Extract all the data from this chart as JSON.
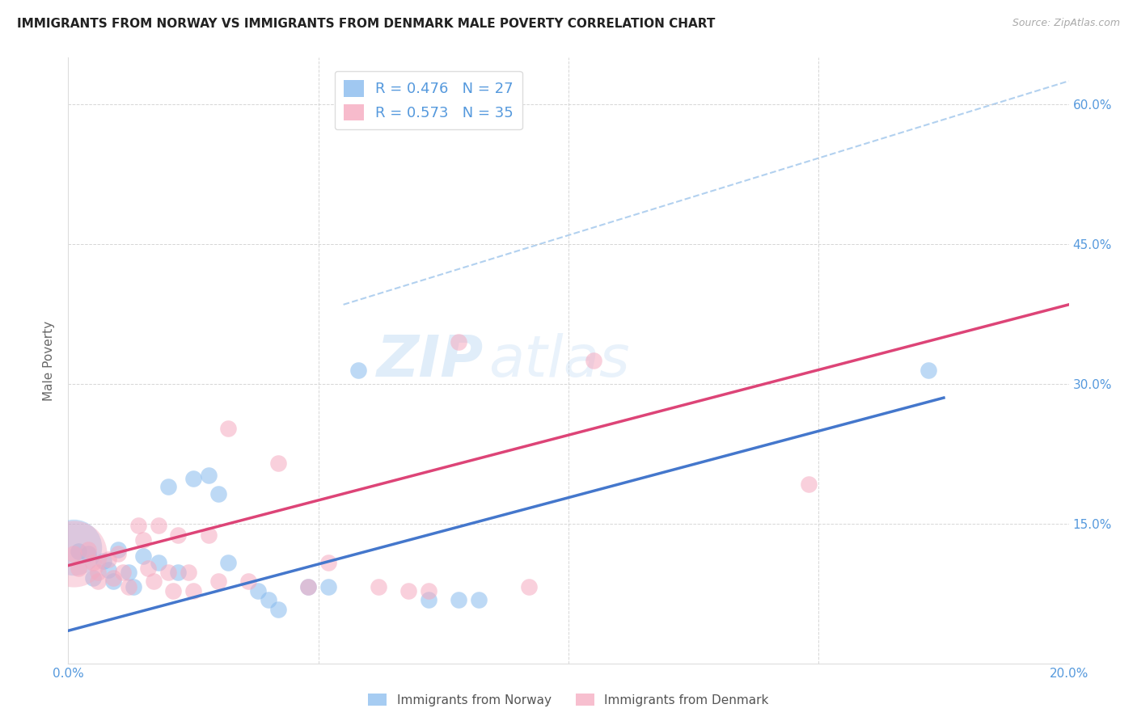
{
  "title": "IMMIGRANTS FROM NORWAY VS IMMIGRANTS FROM DENMARK MALE POVERTY CORRELATION CHART",
  "source": "Source: ZipAtlas.com",
  "tick_color": "#5599dd",
  "ylabel": "Male Poverty",
  "xlim": [
    0.0,
    0.2
  ],
  "ylim": [
    0.0,
    0.65
  ],
  "xticks": [
    0.0,
    0.05,
    0.1,
    0.15,
    0.2
  ],
  "yticks": [
    0.0,
    0.15,
    0.3,
    0.45,
    0.6
  ],
  "xtick_labels": [
    "0.0%",
    "",
    "",
    "",
    "20.0%"
  ],
  "ytick_labels_right": [
    "",
    "15.0%",
    "30.0%",
    "45.0%",
    "60.0%"
  ],
  "norway_R": 0.476,
  "norway_N": 27,
  "denmark_R": 0.573,
  "denmark_N": 35,
  "norway_color": "#88bbee",
  "denmark_color": "#f5aac0",
  "norway_line_color": "#4477cc",
  "denmark_line_color": "#dd4477",
  "ref_line_color": "#aaccee",
  "background_color": "#ffffff",
  "grid_color": "#cccccc",
  "watermark_zip": "ZIP",
  "watermark_atlas": "atlas",
  "norway_scatter": [
    [
      0.002,
      0.12
    ],
    [
      0.004,
      0.118
    ],
    [
      0.005,
      0.092
    ],
    [
      0.007,
      0.11
    ],
    [
      0.008,
      0.1
    ],
    [
      0.009,
      0.088
    ],
    [
      0.01,
      0.122
    ],
    [
      0.012,
      0.098
    ],
    [
      0.013,
      0.082
    ],
    [
      0.015,
      0.115
    ],
    [
      0.018,
      0.108
    ],
    [
      0.02,
      0.19
    ],
    [
      0.022,
      0.098
    ],
    [
      0.025,
      0.198
    ],
    [
      0.028,
      0.202
    ],
    [
      0.03,
      0.182
    ],
    [
      0.032,
      0.108
    ],
    [
      0.038,
      0.078
    ],
    [
      0.04,
      0.068
    ],
    [
      0.042,
      0.058
    ],
    [
      0.048,
      0.082
    ],
    [
      0.052,
      0.082
    ],
    [
      0.058,
      0.315
    ],
    [
      0.072,
      0.068
    ],
    [
      0.078,
      0.068
    ],
    [
      0.082,
      0.068
    ],
    [
      0.172,
      0.315
    ]
  ],
  "norway_big_point": [
    0.001,
    0.125
  ],
  "norway_big_size": 2500,
  "denmark_scatter": [
    [
      0.001,
      0.118
    ],
    [
      0.002,
      0.102
    ],
    [
      0.004,
      0.122
    ],
    [
      0.005,
      0.108
    ],
    [
      0.006,
      0.098
    ],
    [
      0.006,
      0.088
    ],
    [
      0.008,
      0.112
    ],
    [
      0.009,
      0.092
    ],
    [
      0.01,
      0.118
    ],
    [
      0.011,
      0.098
    ],
    [
      0.012,
      0.082
    ],
    [
      0.014,
      0.148
    ],
    [
      0.015,
      0.132
    ],
    [
      0.016,
      0.102
    ],
    [
      0.017,
      0.088
    ],
    [
      0.018,
      0.148
    ],
    [
      0.02,
      0.098
    ],
    [
      0.021,
      0.078
    ],
    [
      0.022,
      0.138
    ],
    [
      0.024,
      0.098
    ],
    [
      0.025,
      0.078
    ],
    [
      0.028,
      0.138
    ],
    [
      0.03,
      0.088
    ],
    [
      0.032,
      0.252
    ],
    [
      0.036,
      0.088
    ],
    [
      0.042,
      0.215
    ],
    [
      0.048,
      0.082
    ],
    [
      0.052,
      0.108
    ],
    [
      0.062,
      0.082
    ],
    [
      0.068,
      0.078
    ],
    [
      0.072,
      0.078
    ],
    [
      0.078,
      0.345
    ],
    [
      0.092,
      0.082
    ],
    [
      0.105,
      0.325
    ],
    [
      0.148,
      0.192
    ]
  ],
  "denmark_big_point": [
    0.001,
    0.118
  ],
  "denmark_big_size": 3500,
  "norway_line_x": [
    0.0,
    0.175
  ],
  "norway_line_y": [
    0.035,
    0.285
  ],
  "denmark_line_x": [
    0.0,
    0.2
  ],
  "denmark_line_y": [
    0.105,
    0.385
  ],
  "ref_line_x": [
    0.055,
    0.2
  ],
  "ref_line_y": [
    0.385,
    0.625
  ]
}
